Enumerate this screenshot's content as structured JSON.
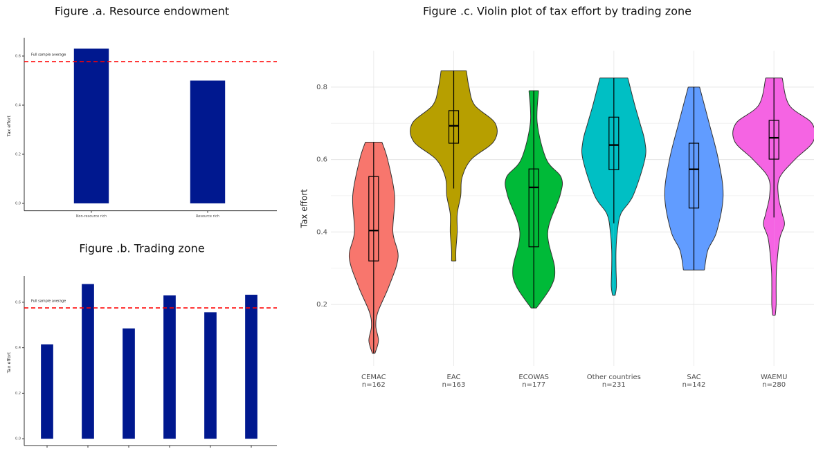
{
  "chart_data": [
    {
      "type": "bar",
      "title": "Figure .a. Resource endowment",
      "y_label": "Tax effort",
      "categories": [
        "Non-resource rich",
        "Resource rich"
      ],
      "values": [
        0.63,
        0.5
      ],
      "color": "#00188f",
      "ylim": [
        -0.03,
        0.66
      ],
      "yticks": [
        {
          "value": 0,
          "label": "0.0"
        },
        0.2,
        0.4,
        0.6
      ],
      "hline": 0.577,
      "hline_label": "Full sample average",
      "hline_color": "#ff0000"
    },
    {
      "type": "bar",
      "title": "Figure .b. Trading zone",
      "y_label": "Tax effort",
      "categories": [
        null,
        null,
        null,
        null,
        null,
        null
      ],
      "values": [
        0.415,
        0.68,
        0.485,
        0.63,
        0.556,
        0.633
      ],
      "color": "#00188f",
      "ylim": [
        -0.03,
        0.7
      ],
      "yticks": [
        {
          "value": 0,
          "label": "0.0"
        },
        0.2,
        0.4,
        0.6
      ],
      "hline": 0.575,
      "hline_label": "Full sample average",
      "hline_color": "#ff0000"
    },
    {
      "type": "violin",
      "title": "Figure .c. Violin plot of tax effort by trading zone",
      "y_label": "Tax effort",
      "ylim": [
        0.03,
        0.9
      ],
      "yticks": [
        0.2,
        0.4,
        0.6,
        0.8
      ],
      "grid": true,
      "series": [
        {
          "name": "CEMAC",
          "n_label": "n=162",
          "color": "#F8766D",
          "q1": 0.32,
          "median": 0.404,
          "q3": 0.553,
          "whisker_low": 0.065,
          "whisker_high": 0.648,
          "density_y": [
            0.648,
            0.6,
            0.5,
            0.4,
            0.33,
            0.25,
            0.18,
            0.14,
            0.1,
            0.065
          ],
          "density": [
            0.19,
            0.32,
            0.48,
            0.44,
            0.56,
            0.35,
            0.1,
            0.05,
            0.11,
            0.03
          ]
        },
        {
          "name": "EAC",
          "n_label": "n=163",
          "color": "#B79F00",
          "q1": 0.645,
          "median": 0.693,
          "q3": 0.735,
          "whisker_low": 0.52,
          "whisker_high": 0.845,
          "density_y": [
            0.845,
            0.8,
            0.75,
            0.7,
            0.65,
            0.6,
            0.55,
            0.5,
            0.45,
            0.4,
            0.35,
            0.32
          ],
          "density": [
            0.29,
            0.35,
            0.48,
            0.95,
            0.92,
            0.4,
            0.19,
            0.16,
            0.08,
            0.08,
            0.05,
            0.05
          ]
        },
        {
          "name": "ECOWAS",
          "n_label": "n=177",
          "color": "#00BA38",
          "q1": 0.359,
          "median": 0.523,
          "q3": 0.574,
          "whisker_low": 0.19,
          "whisker_high": 0.79,
          "density_y": [
            0.79,
            0.7,
            0.6,
            0.55,
            0.5,
            0.4,
            0.3,
            0.25,
            0.19
          ],
          "density": [
            0.11,
            0.08,
            0.29,
            0.63,
            0.6,
            0.32,
            0.48,
            0.4,
            0.06
          ]
        },
        {
          "name": "Other countries",
          "n_label": "n=231",
          "color": "#00BFC4",
          "q1": 0.572,
          "median": 0.64,
          "q3": 0.717,
          "whisker_low": 0.424,
          "whisker_high": 0.825,
          "density_y": [
            0.825,
            0.75,
            0.7,
            0.65,
            0.6,
            0.5,
            0.45,
            0.4,
            0.35,
            0.3,
            0.25,
            0.225
          ],
          "density": [
            0.32,
            0.48,
            0.6,
            0.71,
            0.71,
            0.44,
            0.16,
            0.08,
            0.05,
            0.05,
            0.06,
            0.03
          ]
        },
        {
          "name": "SAC",
          "n_label": "n=142",
          "color": "#619CFF",
          "q1": 0.466,
          "median": 0.573,
          "q3": 0.645,
          "whisker_low": 0.295,
          "whisker_high": 0.8,
          "density_y": [
            0.8,
            0.7,
            0.6,
            0.5,
            0.4,
            0.35,
            0.295
          ],
          "density": [
            0.13,
            0.35,
            0.56,
            0.67,
            0.52,
            0.32,
            0.24
          ]
        },
        {
          "name": "WAEMU",
          "n_label": "n=280",
          "color": "#F564E3",
          "q1": 0.601,
          "median": 0.66,
          "q3": 0.708,
          "whisker_low": 0.44,
          "whisker_high": 0.825,
          "density_y": [
            0.825,
            0.75,
            0.7,
            0.65,
            0.6,
            0.55,
            0.5,
            0.45,
            0.42,
            0.38,
            0.3,
            0.25,
            0.2,
            0.17
          ],
          "density": [
            0.19,
            0.35,
            0.87,
            0.9,
            0.48,
            0.13,
            0.1,
            0.19,
            0.24,
            0.13,
            0.06,
            0.05,
            0.05,
            0.03
          ]
        }
      ]
    }
  ]
}
